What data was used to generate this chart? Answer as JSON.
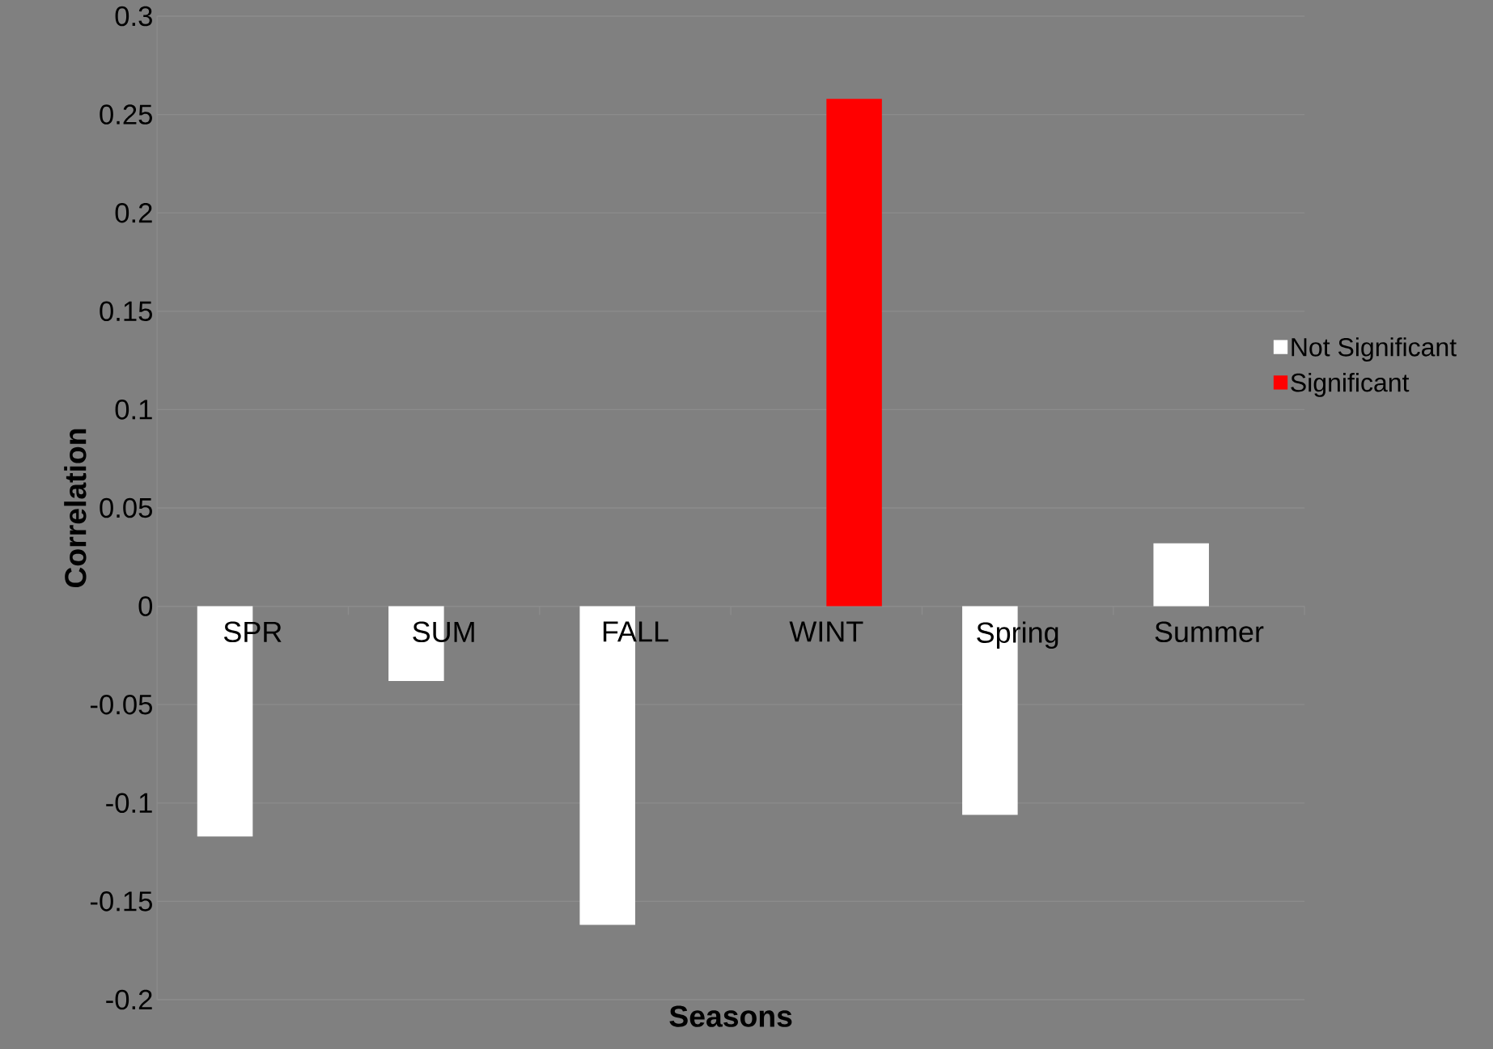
{
  "chart_data": {
    "type": "bar",
    "xlabel": "Seasons",
    "ylabel": "Correlation",
    "categories": [
      "SPR",
      "SUM",
      "FALL",
      "WINT",
      "Spring",
      "Summer"
    ],
    "series": [
      {
        "name": "Not Significant",
        "color": "#ffffff",
        "values": [
          -0.117,
          -0.038,
          -0.162,
          null,
          -0.106,
          0.032
        ]
      },
      {
        "name": "Significant",
        "color": "#ff0000",
        "values": [
          null,
          null,
          null,
          0.258,
          null,
          null
        ]
      }
    ],
    "ylim": [
      -0.2,
      0.3
    ],
    "yticks": [
      -0.2,
      -0.15,
      -0.1,
      -0.05,
      0,
      0.05,
      0.1,
      0.15,
      0.2,
      0.25,
      0.3
    ],
    "grid": "y",
    "legend": "right"
  }
}
